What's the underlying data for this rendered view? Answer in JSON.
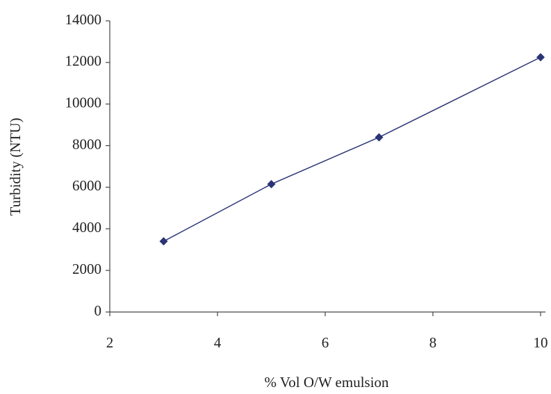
{
  "chart_data": {
    "type": "line",
    "x_label": "% Vol O/W emulsion",
    "y_label": "Turbidity (NTU)",
    "x": [
      3,
      5,
      7,
      10
    ],
    "series": [
      {
        "color": "#2b3576",
        "values": [
          3400,
          6150,
          8400,
          12250
        ]
      }
    ],
    "xlim": [
      2,
      10
    ],
    "xticks": [
      2,
      4,
      6,
      8,
      10
    ],
    "ylim": [
      0,
      14000
    ],
    "yticks": [
      0,
      2000,
      4000,
      6000,
      8000,
      10000,
      12000,
      14000
    ],
    "grid": false,
    "markers": true
  }
}
